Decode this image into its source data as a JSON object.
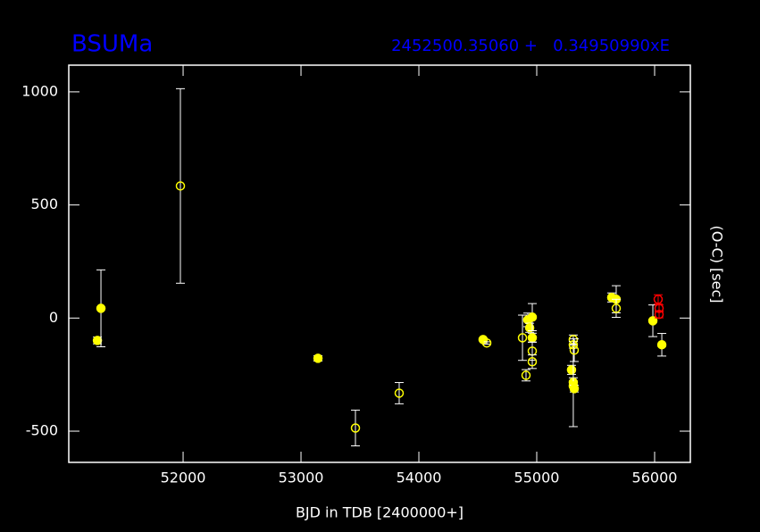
{
  "chart_data": {
    "type": "scatter",
    "title": "BSUMa",
    "subtitle": "2452500.35060 +   0.34950990xE",
    "x_label": "BJD in TDB [2400000+]",
    "y_label": "(O-C) [sec]",
    "xlim": [
      51030,
      56303
    ],
    "ylim": [
      -638,
      1118
    ],
    "xticks": [
      52000,
      53000,
      54000,
      55000,
      56000
    ],
    "yticks": [
      -500,
      0,
      500,
      1000
    ],
    "series": [
      {
        "color": "#ffff00",
        "filled": true,
        "x": [
          51273,
          51303,
          53144,
          54545,
          54924,
          54940,
          54962,
          54962,
          55295,
          55310,
          55310,
          55318,
          55636,
          55674,
          55985,
          56061
        ],
        "values": [
          -99,
          43,
          -178,
          -95,
          -8,
          -43,
          4,
          -87,
          -229,
          -284,
          -300,
          -312,
          91,
          83,
          -12,
          -118
        ],
        "errors": [
          15,
          170,
          12,
          5,
          30,
          20,
          60,
          20,
          20,
          20,
          180,
          15,
          20,
          60,
          70,
          50
        ]
      },
      {
        "color": "#ffff00",
        "filled": false,
        "x": [
          51977,
          53462,
          53833,
          54576,
          54879,
          54909,
          54962,
          54962,
          55310,
          55310,
          55318,
          55674
        ],
        "values": [
          584,
          -486,
          -332,
          -110,
          -87,
          -253,
          -146,
          -193,
          -95,
          -118,
          -142,
          43
        ],
        "errors": [
          430,
          79,
          47,
          5,
          100,
          25,
          40,
          30,
          20,
          15,
          50,
          40
        ]
      },
      {
        "color": "#ff0000",
        "filled": false,
        "x": [
          56030,
          56038,
          56038
        ],
        "values": [
          83,
          43,
          16
        ],
        "errors": [
          20,
          15,
          15
        ]
      }
    ]
  }
}
